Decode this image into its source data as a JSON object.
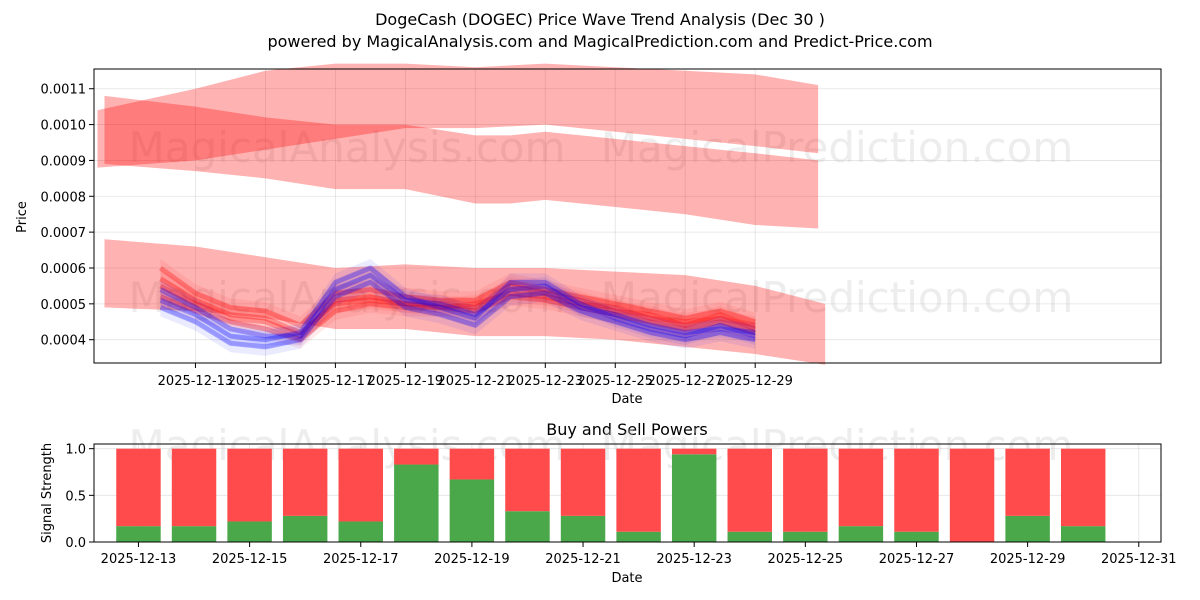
{
  "title_line1": "DogeCash (DOGEC) Price Wave Trend Analysis (Dec 30 )",
  "title_line2": "powered by MagicalAnalysis.com and MagicalPrediction.com and Predict-Price.com",
  "watermarks": [
    "MagicalAnalysis.com",
    "MagicalPrediction.com"
  ],
  "colors": {
    "red": "#ff0000",
    "blue": "#0000ff",
    "buy": "#4aa84a",
    "sell": "#ff4b4b"
  },
  "chart_data": [
    {
      "type": "area",
      "xlabel": "Date",
      "ylabel": "Price",
      "xlim": [
        -1.9,
        28.6
      ],
      "ylim": [
        0.000335,
        0.001155
      ],
      "xtick_labels": [
        "2025-12-13",
        "2025-12-15",
        "2025-12-17",
        "2025-12-19",
        "2025-12-21",
        "2025-12-23",
        "2025-12-25",
        "2025-12-27",
        "2025-12-29"
      ],
      "xtick_positions": [
        1,
        3,
        5,
        7,
        9,
        11,
        13,
        15,
        17
      ],
      "ytick_labels": [
        "0.0004",
        "0.0005",
        "0.0006",
        "0.0007",
        "0.0008",
        "0.0009",
        "0.0010",
        "0.0011"
      ],
      "ytick_values": [
        0.0004,
        0.0005,
        0.0006,
        0.0007,
        0.0008,
        0.0009,
        0.001,
        0.0011
      ],
      "bands": [
        {
          "color": "red",
          "x": [
            -1.8,
            1,
            3,
            5,
            7,
            9,
            11,
            13,
            15,
            17,
            18.8
          ],
          "upper": [
            0.00104,
            0.0011,
            0.00115,
            0.00117,
            0.00117,
            0.00116,
            0.00117,
            0.00116,
            0.00115,
            0.00114,
            0.00111
          ],
          "lower": [
            0.00088,
            0.0009,
            0.00093,
            0.00096,
            0.00099,
            0.00099,
            0.001,
            0.00098,
            0.00096,
            0.00094,
            0.00092
          ]
        },
        {
          "color": "red",
          "x": [
            -1.6,
            1,
            3,
            5,
            7,
            9,
            10,
            11,
            13,
            15,
            17,
            18.8
          ],
          "upper": [
            0.00108,
            0.00105,
            0.00102,
            0.001,
            0.001,
            0.00097,
            0.00097,
            0.00098,
            0.00096,
            0.00094,
            0.00092,
            0.0009
          ],
          "lower": [
            0.00089,
            0.00087,
            0.00085,
            0.00082,
            0.00082,
            0.00078,
            0.00078,
            0.00079,
            0.00077,
            0.00075,
            0.00072,
            0.00071
          ]
        },
        {
          "color": "red",
          "x": [
            -1.6,
            1,
            3,
            5,
            7,
            9,
            11,
            13,
            15,
            17,
            19
          ],
          "upper": [
            0.00068,
            0.00066,
            0.00063,
            0.0006,
            0.00061,
            0.0006,
            0.0006,
            0.00059,
            0.00058,
            0.00055,
            0.0005
          ],
          "lower": [
            0.00049,
            0.00048,
            0.00046,
            0.00043,
            0.00043,
            0.00041,
            0.00041,
            0.0004,
            0.00038,
            0.00036,
            0.00033
          ]
        }
      ],
      "lines": [
        {
          "color": "red",
          "values": [
            0.00057,
            0.00051,
            0.00047,
            0.00046,
            0.00042,
            0.0005,
            0.00051,
            0.0005,
            0.00049,
            0.0005,
            0.00053,
            0.00052,
            0.0005,
            0.00049,
            0.00046,
            0.00045,
            0.00046,
            0.00044
          ]
        },
        {
          "color": "red",
          "values": [
            0.00055,
            0.0005,
            0.00046,
            0.00045,
            0.00041,
            0.00051,
            0.00052,
            0.0005,
            0.0005,
            0.00049,
            0.00055,
            0.00053,
            0.00051,
            0.00048,
            0.00047,
            0.00044,
            0.00047,
            0.00043
          ]
        },
        {
          "color": "red",
          "values": [
            0.00052,
            0.00048,
            0.00045,
            0.00043,
            0.0004,
            0.00048,
            0.0005,
            0.00049,
            0.00049,
            0.00048,
            0.00052,
            0.00051,
            0.00049,
            0.00047,
            0.00045,
            0.00043,
            0.00045,
            0.00042
          ]
        },
        {
          "color": "red",
          "values": [
            0.0006,
            0.00053,
            0.00049,
            0.00048,
            0.00044,
            0.00053,
            0.00054,
            0.00052,
            0.00051,
            0.00051,
            0.00056,
            0.00054,
            0.00052,
            0.0005,
            0.00048,
            0.00046,
            0.00048,
            0.00045
          ]
        },
        {
          "color": "blue",
          "values": [
            0.00054,
            0.00049,
            0.00043,
            0.00041,
            0.00041,
            0.00054,
            0.00058,
            0.00051,
            0.0005,
            0.00047,
            0.00054,
            0.00055,
            0.00049,
            0.00047,
            0.00044,
            0.00042,
            0.00043,
            0.00042
          ]
        },
        {
          "color": "blue",
          "values": [
            0.00051,
            0.00047,
            0.00041,
            0.0004,
            0.00042,
            0.00056,
            0.0006,
            0.00052,
            0.00049,
            0.00046,
            0.00056,
            0.00056,
            0.0005,
            0.00046,
            0.00043,
            0.00041,
            0.00044,
            0.00041
          ]
        },
        {
          "color": "blue",
          "values": [
            0.00049,
            0.00045,
            0.00039,
            0.00038,
            0.0004,
            0.00052,
            0.00056,
            0.00049,
            0.00047,
            0.00044,
            0.00052,
            0.00053,
            0.00048,
            0.00045,
            0.00042,
            0.0004,
            0.00042,
            0.0004
          ]
        }
      ]
    },
    {
      "type": "bar",
      "title": "Buy and Sell Powers",
      "xlabel": "Date",
      "ylabel": "Signal Strength",
      "xlim": [
        -0.8,
        18.4
      ],
      "ylim": [
        0,
        1.05
      ],
      "xtick_labels": [
        "2025-12-13",
        "2025-12-15",
        "2025-12-17",
        "2025-12-19",
        "2025-12-21",
        "2025-12-23",
        "2025-12-25",
        "2025-12-27",
        "2025-12-29",
        "2025-12-31"
      ],
      "xtick_positions": [
        0,
        2,
        4,
        6,
        8,
        10,
        12,
        14,
        16,
        18
      ],
      "ytick_labels": [
        "0.0",
        "0.5",
        "1.0"
      ],
      "ytick_values": [
        0,
        0.5,
        1.0
      ],
      "series": [
        {
          "name": "Buy",
          "values": [
            0.17,
            0.17,
            0.22,
            0.28,
            0.22,
            0.83,
            0.67,
            0.33,
            0.28,
            0.11,
            0.94,
            0.11,
            0.11,
            0.17,
            0.11,
            0.0,
            0.28,
            0.17
          ]
        },
        {
          "name": "Sell",
          "values": [
            0.83,
            0.83,
            0.78,
            0.72,
            0.78,
            0.17,
            0.33,
            0.67,
            0.72,
            0.89,
            0.06,
            0.89,
            0.89,
            0.83,
            0.89,
            1.0,
            0.72,
            0.83
          ]
        }
      ]
    }
  ]
}
